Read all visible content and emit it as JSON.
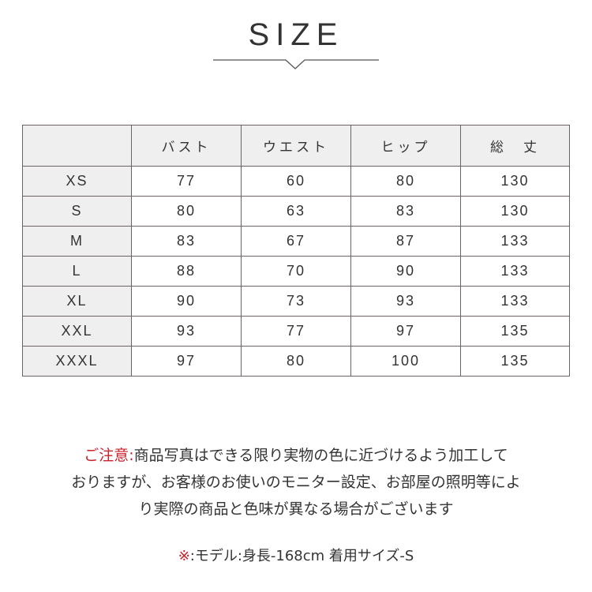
{
  "title": "SIZE",
  "table": {
    "headers": [
      "",
      "バスト",
      "ウエスト",
      "ヒップ",
      "総　丈"
    ],
    "rows": [
      [
        "XS",
        "77",
        "60",
        "80",
        "130"
      ],
      [
        "S",
        "80",
        "63",
        "83",
        "130"
      ],
      [
        "M",
        "83",
        "67",
        "87",
        "133"
      ],
      [
        "L",
        "88",
        "70",
        "90",
        "133"
      ],
      [
        "XL",
        "90",
        "73",
        "93",
        "133"
      ],
      [
        "XXL",
        "93",
        "77",
        "97",
        "135"
      ],
      [
        "XXXL",
        "97",
        "80",
        "100",
        "135"
      ]
    ]
  },
  "notice": {
    "label": "ご注意:",
    "line1": "商品写真はできる限り実物の色に近づけるよう加工して",
    "line2": "おりますが、お客様のお使いのモニター設定、お部屋の照明等によ",
    "line3": "り実際の商品と色味が異なる場合がございます"
  },
  "model": {
    "mark": "※",
    "text": ":モデル:身長-168cm 着用サイズ-S"
  },
  "colors": {
    "accent": "#c8232c",
    "header_bg": "#efefef",
    "border": "#6b6262"
  }
}
